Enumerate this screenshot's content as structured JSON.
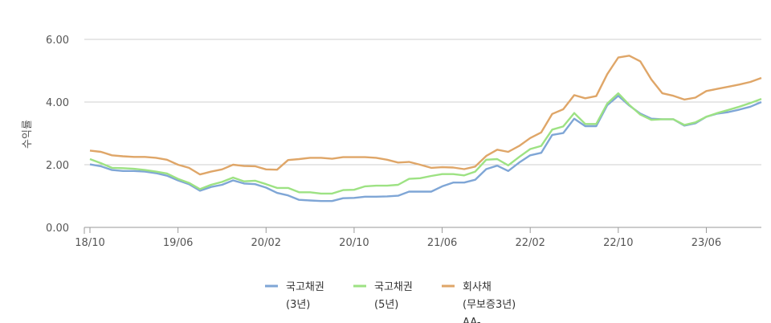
{
  "chart_data": {
    "type": "line",
    "title": "",
    "xlabel": "",
    "ylabel": "수익률",
    "ylim": [
      0,
      6
    ],
    "grid": true,
    "legend_position": "bottom",
    "y_ticks": [
      "0.00",
      "2.00",
      "4.00",
      "6.00"
    ],
    "x_tick_labels": [
      "18/10",
      "19/06",
      "20/02",
      "20/10",
      "21/06",
      "22/02",
      "22/10",
      "23/06"
    ],
    "x_tick_index": [
      0,
      8,
      16,
      24,
      32,
      40,
      48,
      56
    ],
    "x_count": 62,
    "series": [
      {
        "name": "국고채권",
        "name_line2": "(3년)",
        "color": "#7fa6d6",
        "values": [
          2.01,
          1.95,
          1.83,
          1.8,
          1.8,
          1.78,
          1.73,
          1.65,
          1.5,
          1.38,
          1.17,
          1.29,
          1.36,
          1.5,
          1.4,
          1.38,
          1.27,
          1.1,
          1.02,
          0.88,
          0.86,
          0.84,
          0.84,
          0.93,
          0.94,
          0.98,
          0.98,
          0.99,
          1.01,
          1.14,
          1.14,
          1.14,
          1.31,
          1.43,
          1.43,
          1.52,
          1.86,
          1.97,
          1.8,
          2.07,
          2.3,
          2.38,
          2.95,
          3.01,
          3.47,
          3.23,
          3.23,
          3.9,
          4.2,
          3.89,
          3.63,
          3.47,
          3.45,
          3.45,
          3.25,
          3.32,
          3.53,
          3.63,
          3.68,
          3.76,
          3.85,
          4.0
        ]
      },
      {
        "name": "국고채권",
        "name_line2": "(5년)",
        "color": "#9de283",
        "values": [
          2.18,
          2.05,
          1.9,
          1.89,
          1.87,
          1.83,
          1.78,
          1.72,
          1.55,
          1.42,
          1.22,
          1.36,
          1.45,
          1.59,
          1.47,
          1.49,
          1.38,
          1.26,
          1.26,
          1.12,
          1.12,
          1.08,
          1.08,
          1.19,
          1.2,
          1.31,
          1.33,
          1.33,
          1.36,
          1.55,
          1.57,
          1.64,
          1.7,
          1.7,
          1.66,
          1.78,
          2.16,
          2.18,
          1.98,
          2.25,
          2.5,
          2.6,
          3.12,
          3.22,
          3.65,
          3.3,
          3.3,
          3.95,
          4.28,
          3.91,
          3.6,
          3.43,
          3.45,
          3.45,
          3.27,
          3.35,
          3.53,
          3.65,
          3.75,
          3.85,
          3.97,
          4.1
        ]
      },
      {
        "name": "회사채",
        "name_line2": "(무보증3년)",
        "name_line3": "AA-",
        "color": "#dfa668",
        "values": [
          2.45,
          2.41,
          2.3,
          2.27,
          2.25,
          2.25,
          2.22,
          2.16,
          2.0,
          1.9,
          1.69,
          1.78,
          1.85,
          2.0,
          1.96,
          1.95,
          1.85,
          1.84,
          2.15,
          2.18,
          2.22,
          2.22,
          2.19,
          2.24,
          2.24,
          2.24,
          2.22,
          2.16,
          2.07,
          2.09,
          2.0,
          1.9,
          1.92,
          1.91,
          1.86,
          1.94,
          2.28,
          2.48,
          2.41,
          2.6,
          2.85,
          3.03,
          3.62,
          3.77,
          4.22,
          4.12,
          4.19,
          4.89,
          5.42,
          5.48,
          5.3,
          4.72,
          4.28,
          4.2,
          4.08,
          4.14,
          4.35,
          4.42,
          4.49,
          4.56,
          4.64,
          4.77
        ]
      }
    ]
  }
}
